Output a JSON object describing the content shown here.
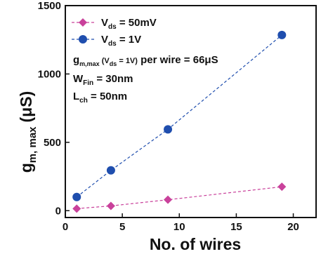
{
  "chart_data": {
    "type": "scatter",
    "title": "",
    "xlabel": "No. of wires",
    "ylabel": {
      "main": "g",
      "sub": "m, max",
      "unit": "(μS)"
    },
    "xlim": [
      0,
      22
    ],
    "ylim": [
      -50,
      1500
    ],
    "xticks": [
      0,
      5,
      10,
      15,
      20
    ],
    "yticks": [
      0,
      500,
      1000,
      1500
    ],
    "grid": false,
    "legend_position": "top-left",
    "series": [
      {
        "label": {
          "main": "V",
          "sub": "ds",
          "rest": " = 50mV"
        },
        "color": "#c9419b",
        "marker": "diamond",
        "line": "dashed",
        "x": [
          1,
          4,
          9,
          19
        ],
        "y": [
          15,
          35,
          80,
          175
        ]
      },
      {
        "label": {
          "main": "V",
          "sub": "ds",
          "rest": " = 1V"
        },
        "color": "#1f4eae",
        "marker": "circle",
        "line": "dashed",
        "x": [
          1,
          4,
          9,
          19
        ],
        "y": [
          100,
          295,
          595,
          1285
        ]
      }
    ],
    "annotations": {
      "gm": {
        "a": "g",
        "b": "m,max",
        "c": " (V",
        "d": "ds",
        "e": " = 1V)",
        "f": " per wire = 66μS"
      },
      "wfin": {
        "a": "W",
        "b": "Fin",
        "c": " = 30nm"
      },
      "lch": {
        "a": "L",
        "b": "ch",
        "c": " = 50nm"
      }
    }
  }
}
